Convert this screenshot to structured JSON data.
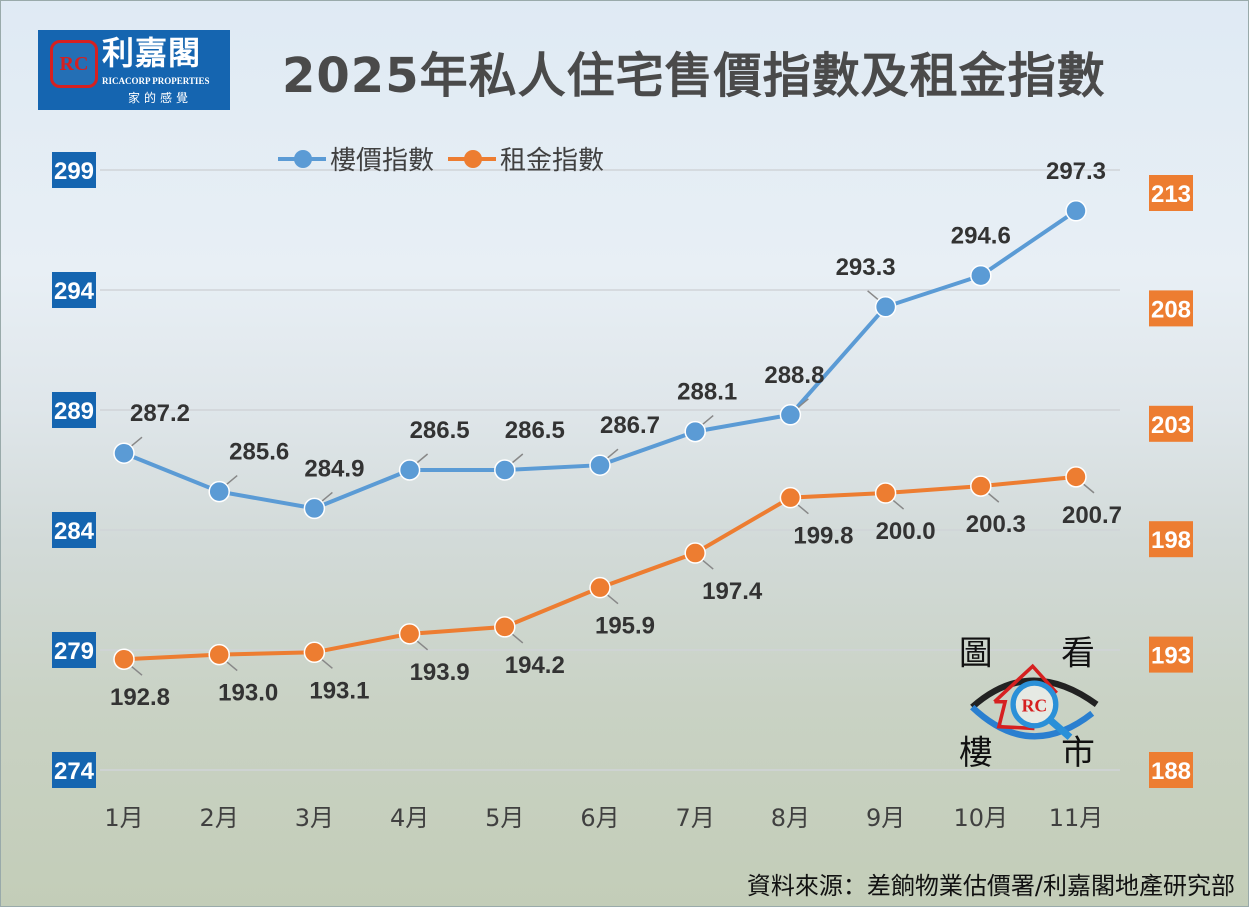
{
  "title": "2025年私人住宅售價指數及租金指數",
  "logo": {
    "name": "利嘉閣",
    "english": "RICACORP PROPERTIES",
    "slogan": "家的感覺",
    "mark": "RC"
  },
  "watermark": {
    "chars": [
      "圖",
      "看",
      "樓",
      "市"
    ]
  },
  "source": "資料來源：差餉物業估價署/利嘉閣地產研究部",
  "colors": {
    "price": "#5b9bd5",
    "rent": "#ed7d31",
    "left_axis_box": "#1565b0",
    "right_axis_box": "#ed7d31"
  },
  "chart_data": {
    "type": "line",
    "title": "2025年私人住宅售價指數及租金指數",
    "categories": [
      "1月",
      "2月",
      "3月",
      "4月",
      "5月",
      "6月",
      "7月",
      "8月",
      "9月",
      "10月",
      "11月"
    ],
    "series": [
      {
        "name": "樓價指數",
        "axis": "left",
        "values": [
          287.2,
          285.6,
          284.9,
          286.5,
          286.5,
          286.7,
          288.1,
          288.8,
          293.3,
          294.6,
          297.3
        ]
      },
      {
        "name": "租金指數",
        "axis": "right",
        "values": [
          192.8,
          193.0,
          193.1,
          193.9,
          194.2,
          195.9,
          197.4,
          199.8,
          200.0,
          200.3,
          200.7
        ]
      }
    ],
    "y_left": {
      "range": [
        274,
        299
      ],
      "ticks": [
        "274",
        "279",
        "284",
        "289",
        "294",
        "299"
      ]
    },
    "y_right": {
      "range": [
        188,
        213
      ],
      "ticks": [
        "188",
        "193",
        "198",
        "203",
        "208",
        "213"
      ]
    },
    "grid": true,
    "legend": "top-left"
  }
}
